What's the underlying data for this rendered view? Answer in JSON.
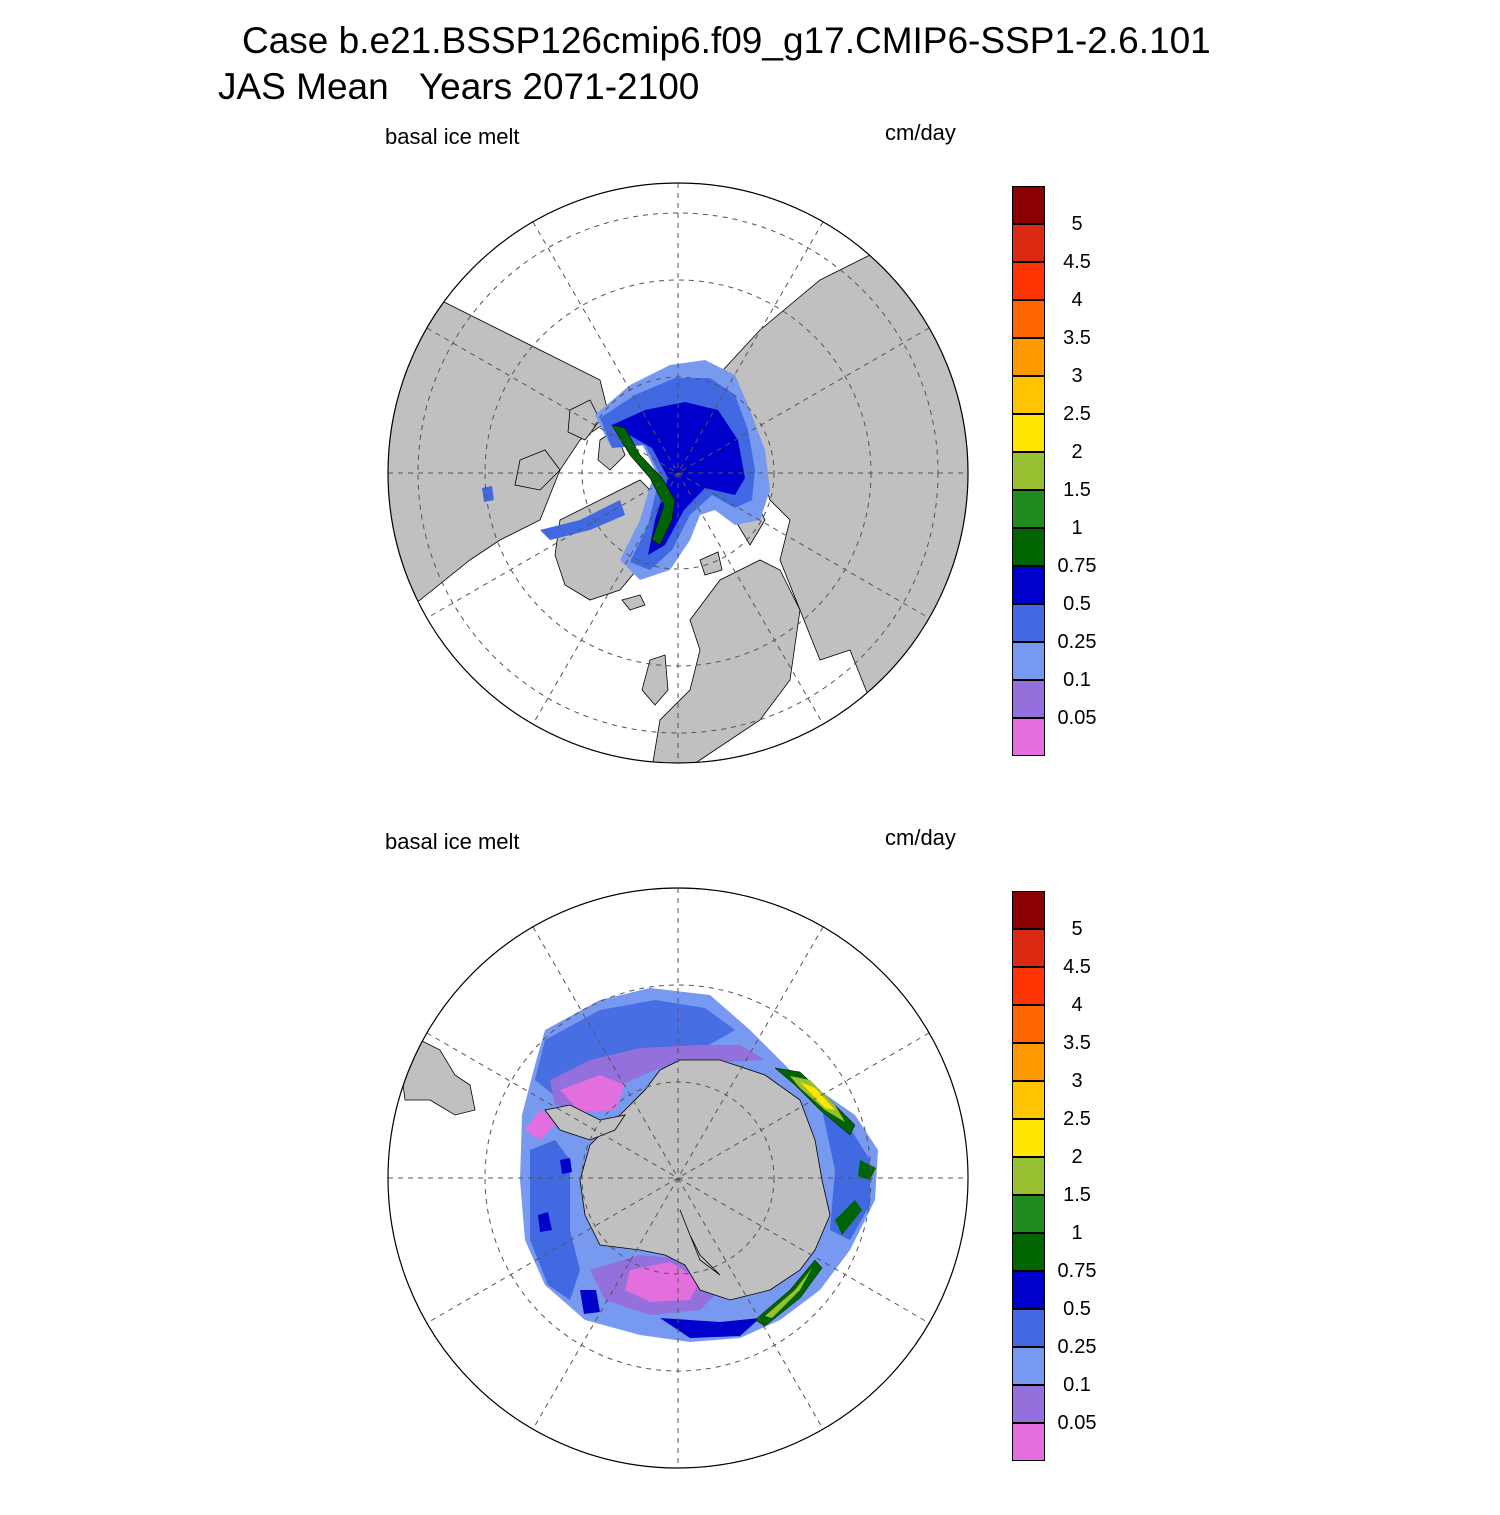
{
  "title": {
    "line1": "Case b.e21.BSSP126cmip6.f09_g17.CMIP6-SSP1-2.6.101",
    "line2": "JAS Mean   Years 2071-2100"
  },
  "panels": [
    {
      "id": "north",
      "variable": "basal ice melt",
      "units": "cm/day",
      "hemisphere": "Arctic (north polar stereographic)"
    },
    {
      "id": "south",
      "variable": "basal ice melt",
      "units": "cm/day",
      "hemisphere": "Antarctic (south polar stereographic)"
    }
  ],
  "colorbar": {
    "levels": [
      "5",
      "4.5",
      "4",
      "3.5",
      "3",
      "2.5",
      "2",
      "1.5",
      "1",
      "0.75",
      "0.5",
      "0.25",
      "0.1",
      "0.05"
    ],
    "colors": [
      "#8b0000",
      "#dc2a12",
      "#ff3300",
      "#ff6600",
      "#ff9900",
      "#ffc400",
      "#ffe600",
      "#99c032",
      "#218b22",
      "#006400",
      "#0000cd",
      "#4169e1",
      "#7799f0",
      "#9370db",
      "#e36fdf"
    ]
  },
  "chart_data": {
    "type": "heatmap",
    "title": "Case b.e21.BSSP126cmip6.f09_g17.CMIP6-SSP1-2.6.101 JAS Mean Years 2071-2100",
    "variable": "basal ice melt",
    "units": "cm/day",
    "contour_levels": [
      0.05,
      0.1,
      0.25,
      0.5,
      0.75,
      1,
      1.5,
      2,
      2.5,
      3,
      3.5,
      4,
      4.5,
      5
    ],
    "maps": [
      {
        "region": "north",
        "projection": "polar stereographic",
        "max_value_range": "1-1.5"
      },
      {
        "region": "south",
        "projection": "polar stereographic",
        "max_value_range": "2-3"
      }
    ]
  }
}
